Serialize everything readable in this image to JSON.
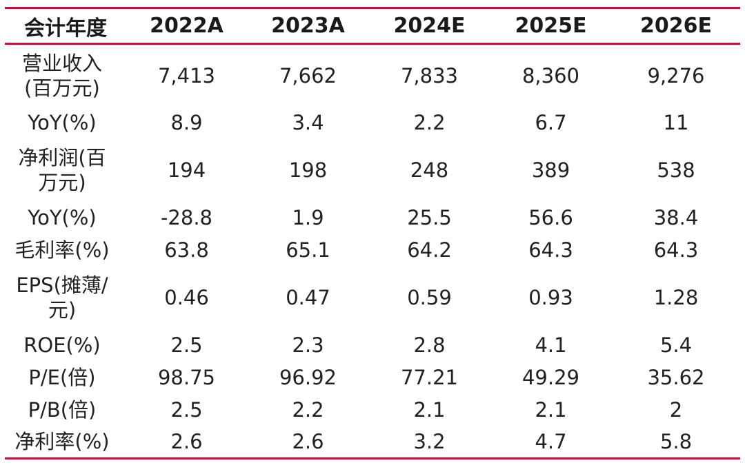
{
  "accent_color": "#c0143c",
  "table": {
    "headers": [
      "会计年度",
      "2022A",
      "2023A",
      "2024E",
      "2025E",
      "2026E"
    ],
    "rows": [
      {
        "label": "营业收入(百万元)",
        "values": [
          "7,413",
          "7,662",
          "7,833",
          "8,360",
          "9,276"
        ]
      },
      {
        "label": "YoY(%)",
        "values": [
          "8.9",
          "3.4",
          "2.2",
          "6.7",
          "11"
        ]
      },
      {
        "label": "净利润(百万元)",
        "values": [
          "194",
          "198",
          "248",
          "389",
          "538"
        ]
      },
      {
        "label": "YoY(%)",
        "values": [
          "-28.8",
          "1.9",
          "25.5",
          "56.6",
          "38.4"
        ]
      },
      {
        "label": "毛利率(%)",
        "values": [
          "63.8",
          "65.1",
          "64.2",
          "64.3",
          "64.3"
        ]
      },
      {
        "label": "EPS(摊薄/元)",
        "values": [
          "0.46",
          "0.47",
          "0.59",
          "0.93",
          "1.28"
        ]
      },
      {
        "label": "ROE(%)",
        "values": [
          "2.5",
          "2.3",
          "2.8",
          "4.1",
          "5.4"
        ]
      },
      {
        "label": "P/E(倍)",
        "values": [
          "98.75",
          "96.92",
          "77.21",
          "49.29",
          "35.62"
        ]
      },
      {
        "label": "P/B(倍)",
        "values": [
          "2.5",
          "2.2",
          "2.1",
          "2.1",
          "2"
        ]
      },
      {
        "label": "净利率(%)",
        "values": [
          "2.6",
          "2.6",
          "3.2",
          "4.7",
          "5.8"
        ]
      }
    ]
  }
}
